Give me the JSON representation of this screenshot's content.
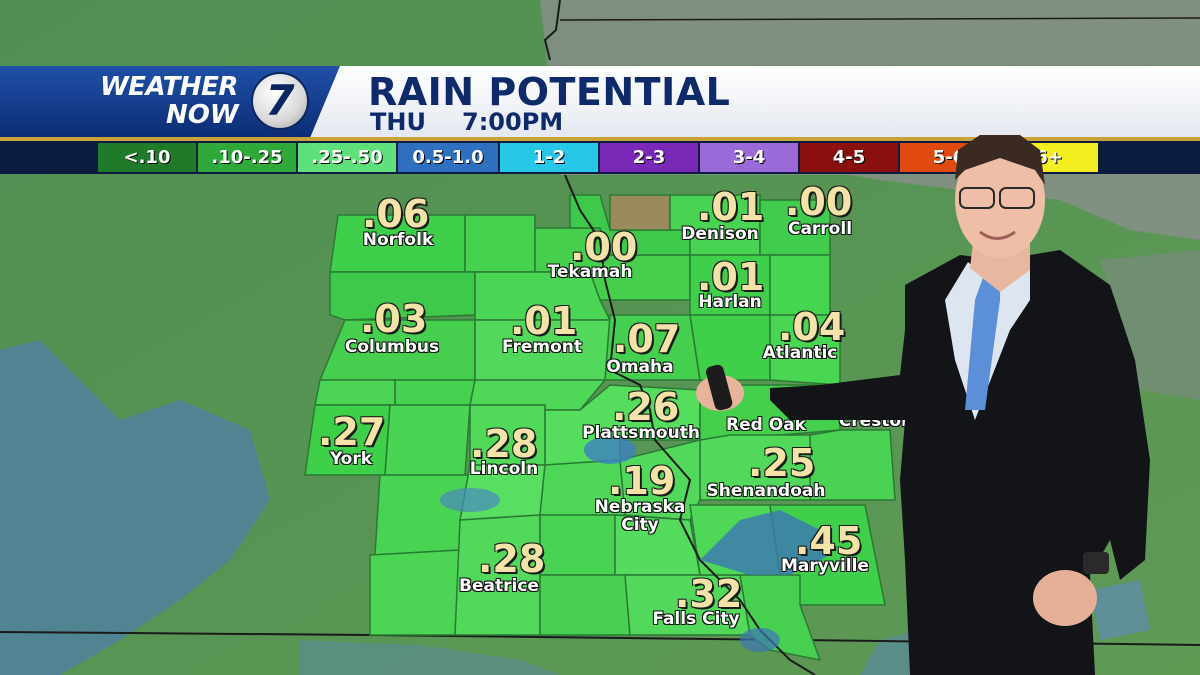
{
  "header": {
    "brand_line1": "WEATHER",
    "brand_line2": "NOW",
    "logo_number": "7",
    "title": "RAIN POTENTIAL",
    "day": "THU",
    "time": "7:00PM"
  },
  "legend": [
    {
      "label": "<.10",
      "color": "#1f7a2a"
    },
    {
      "label": ".10-.25",
      "color": "#2faa3a"
    },
    {
      "label": ".25-.50",
      "color": "#5ee07a"
    },
    {
      "label": "0.5-1.0",
      "color": "#2f6fc0"
    },
    {
      "label": "1-2",
      "color": "#27c7e8"
    },
    {
      "label": "2-3",
      "color": "#7a28b8"
    },
    {
      "label": "3-4",
      "color": "#9a6ad8"
    },
    {
      "label": "4-5",
      "color": "#8a1010"
    },
    {
      "label": "5-6",
      "color": "#e04a10"
    },
    {
      "label": "6+",
      "color": "#f2ee20"
    }
  ],
  "locations": [
    {
      "value": ".06",
      "city": "Norfolk"
    },
    {
      "value": ".00",
      "city": "Tekamah"
    },
    {
      "value": ".01",
      "city": "Denison"
    },
    {
      "value": ".00",
      "city": "Carroll"
    },
    {
      "value": ".01",
      "city": "Harlan"
    },
    {
      "value": ".03",
      "city": "Columbus"
    },
    {
      "value": ".01",
      "city": "Fremont"
    },
    {
      "value": ".07",
      "city": "Omaha"
    },
    {
      "value": ".04",
      "city": "Atlantic"
    },
    {
      "value": ".27",
      "city": "York"
    },
    {
      "value": ".28",
      "city": "Lincoln"
    },
    {
      "value": ".26",
      "city": "Plattsmouth"
    },
    {
      "value": "",
      "city": "Red Oak"
    },
    {
      "value": "",
      "city": "Creston"
    },
    {
      "value": ".19",
      "city": "Nebraska City"
    },
    {
      "value": ".25",
      "city": "Shenandoah"
    },
    {
      "value": ".28",
      "city": "Beatrice"
    },
    {
      "value": ".45",
      "city": "Maryville"
    },
    {
      "value": ".32",
      "city": "Falls City"
    }
  ],
  "colors": {
    "brand_blue": "#0c2d74",
    "value_text": "#f3e3a8",
    "county_green": "#3fcf4a"
  }
}
